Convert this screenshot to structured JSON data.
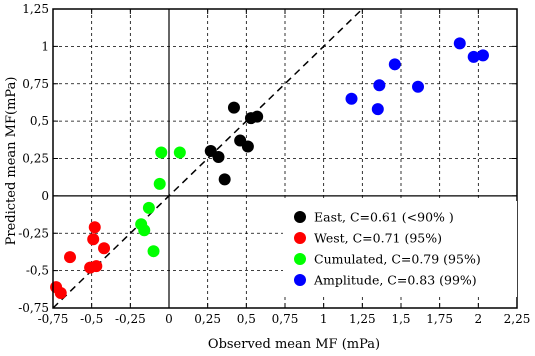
{
  "chart_data": {
    "type": "scatter",
    "xlabel": "Observed mean MF (mPa)",
    "ylabel": "Predicted mean MF(mPa)",
    "xlim": [
      -0.75,
      2.25
    ],
    "ylim": [
      -0.75,
      1.25
    ],
    "x_ticks": [
      -0.75,
      -0.5,
      -0.25,
      0,
      0.25,
      0.5,
      0.75,
      1,
      1.25,
      1.5,
      1.75,
      2,
      2.25
    ],
    "x_tick_labels": [
      "-0,75",
      "-0,5",
      "-0,25",
      "0",
      "0,25",
      "0,5",
      "0,75",
      "1",
      "1,25",
      "1,5",
      "1,75",
      "2",
      "2,25"
    ],
    "y_ticks": [
      -0.75,
      -0.5,
      -0.25,
      0,
      0.25,
      0.5,
      0.75,
      1,
      1.25
    ],
    "y_tick_labels": [
      "-0,75",
      "-0,5",
      "-0,25",
      "0",
      "0,25",
      "0,5",
      "0,75",
      "1",
      "1,25"
    ],
    "grid": true,
    "reference_line": "y = x, dashed",
    "legend_position": "bottom-right",
    "series": [
      {
        "name": "East, C=0.61 (<90% )",
        "color": "#000000",
        "points": [
          [
            0.42,
            0.59
          ],
          [
            0.27,
            0.3
          ],
          [
            0.32,
            0.26
          ],
          [
            0.36,
            0.11
          ],
          [
            0.46,
            0.37
          ],
          [
            0.51,
            0.33
          ],
          [
            0.53,
            0.52
          ],
          [
            0.57,
            0.53
          ]
        ]
      },
      {
        "name": "West, C=0.71 (95%)",
        "color": "#ff0000",
        "points": [
          [
            -0.64,
            -0.41
          ],
          [
            -0.48,
            -0.21
          ],
          [
            -0.49,
            -0.29
          ],
          [
            -0.42,
            -0.35
          ],
          [
            -0.51,
            -0.48
          ],
          [
            -0.47,
            -0.47
          ],
          [
            -0.73,
            -0.61
          ],
          [
            -0.7,
            -0.65
          ]
        ]
      },
      {
        "name": "Cumulated, C=0.79 (95%)",
        "color": "#00ff00",
        "points": [
          [
            -0.05,
            0.29
          ],
          [
            0.07,
            0.29
          ],
          [
            -0.06,
            0.08
          ],
          [
            -0.13,
            -0.08
          ],
          [
            -0.18,
            -0.19
          ],
          [
            -0.16,
            -0.23
          ],
          [
            -0.1,
            -0.37
          ]
        ]
      },
      {
        "name": "Amplitude, C=0.83 (99%)",
        "color": "#0000ff",
        "points": [
          [
            1.88,
            1.02
          ],
          [
            1.97,
            0.93
          ],
          [
            2.03,
            0.94
          ],
          [
            1.46,
            0.88
          ],
          [
            1.36,
            0.74
          ],
          [
            1.61,
            0.73
          ],
          [
            1.18,
            0.65
          ],
          [
            1.35,
            0.58
          ]
        ]
      }
    ]
  }
}
